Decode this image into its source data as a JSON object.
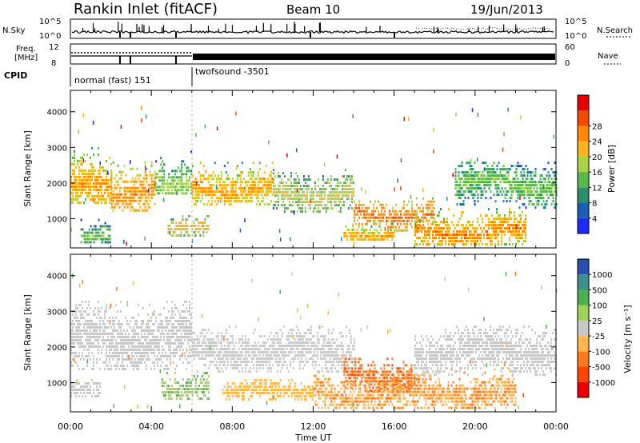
{
  "header": {
    "station": "Rankin Inlet (fitACF)",
    "beam": "Beam 10",
    "date": "19/Jun/2013"
  },
  "strips": {
    "nsky_label": "N.Sky",
    "nsky_ticks": [
      "10^5",
      "10^0"
    ],
    "nsearch_label": "N.Search",
    "nsearch_ticks": [
      "10^5",
      "10^0"
    ],
    "freq_label_1": "Freq.",
    "freq_label_2": "[MHz]",
    "freq_ticks": [
      "12",
      "8"
    ],
    "nave_label": "Nave",
    "nave_ticks": [
      "60",
      "0"
    ],
    "cpid_label": "CPID",
    "cpid_modes": [
      {
        "name": "normal (fast) 151",
        "start": 0,
        "end": 6
      },
      {
        "name": "twofsound -3501",
        "start": 6,
        "end": 24
      }
    ]
  },
  "axes": {
    "x_tick_labels": [
      "00:00",
      "04:00",
      "08:00",
      "12:00",
      "16:00",
      "20:00",
      "00:00"
    ],
    "x_label": "Time UT",
    "y_label": "Slant Range [km]",
    "y_tick_labels": [
      "1000",
      "2000",
      "3000",
      "4000"
    ]
  },
  "power_scale": {
    "label": "Power [dB]",
    "tick_labels": [
      "4",
      "8",
      "12",
      "16",
      "20",
      "24",
      "28"
    ],
    "colors": [
      "#1a2aff",
      "#1a5fb5",
      "#2a8f6a",
      "#56b84a",
      "#a6d445",
      "#ffb21a",
      "#ff8a00",
      "#f24a00",
      "#e80000"
    ]
  },
  "velocity_scale": {
    "label": "Velocity [m s⁻¹]",
    "tick_labels": [
      "1000",
      "500",
      "100",
      "25",
      "-25",
      "-100",
      "-500",
      "-1000"
    ],
    "colors": [
      "#2a4fb0",
      "#3d8f8a",
      "#4caf50",
      "#9ed35a",
      "#c8c8c8",
      "#ffb74d",
      "#ff7b1a",
      "#ff4500",
      "#ee0000"
    ]
  },
  "chart_data": {
    "type": "heatmap",
    "title": "Rankin Inlet (fitACF)  Beam 10  19/Jun/2013",
    "xlabel": "Time UT",
    "ylabel": "Slant Range [km]",
    "xlim": [
      0,
      24
    ],
    "ylim": [
      180,
      4600
    ],
    "x_unit": "hours UT",
    "panels": [
      {
        "quantity": "Power",
        "unit": "dB",
        "scale": [
          0,
          32
        ],
        "scatter_regions": [
          {
            "t_start": 0.0,
            "t_end": 2.0,
            "range_low": 1400,
            "range_high": 3100,
            "peak_range": 1850,
            "value": 22
          },
          {
            "t_start": 2.0,
            "t_end": 4.2,
            "range_low": 1200,
            "range_high": 2700,
            "peak_range": 1800,
            "value": 24
          },
          {
            "t_start": 0.5,
            "t_end": 2.0,
            "range_low": 300,
            "range_high": 1000,
            "peak_range": 600,
            "value": 14
          },
          {
            "t_start": 4.2,
            "t_end": 6.0,
            "range_low": 1700,
            "range_high": 3000,
            "peak_range": 2100,
            "value": 16
          },
          {
            "t_start": 4.8,
            "t_end": 6.8,
            "range_low": 500,
            "range_high": 1100,
            "peak_range": 750,
            "value": 20
          },
          {
            "t_start": 6.0,
            "t_end": 10.0,
            "range_low": 1400,
            "range_high": 2600,
            "peak_range": 1900,
            "value": 22
          },
          {
            "t_start": 10.0,
            "t_end": 14.0,
            "range_low": 1200,
            "range_high": 2400,
            "peak_range": 1750,
            "value": 18
          },
          {
            "t_start": 14.0,
            "t_end": 18.0,
            "range_low": 700,
            "range_high": 1600,
            "peak_range": 1150,
            "value": 25
          },
          {
            "t_start": 13.5,
            "t_end": 16.0,
            "range_low": 400,
            "range_high": 900,
            "peak_range": 600,
            "value": 22
          },
          {
            "t_start": 17.0,
            "t_end": 22.5,
            "range_low": 300,
            "range_high": 1300,
            "peak_range": 650,
            "value": 24
          },
          {
            "t_start": 19.0,
            "t_end": 24.0,
            "range_low": 1300,
            "range_high": 2600,
            "peak_range": 2000,
            "value": 14
          }
        ]
      },
      {
        "quantity": "Velocity",
        "unit": "m s-1",
        "scale": [
          -1000,
          1000
        ],
        "scatter_regions": [
          {
            "t_start": 0.0,
            "t_end": 6.0,
            "range_low": 1400,
            "range_high": 3300,
            "peak_range": 2200,
            "value": 0
          },
          {
            "t_start": 0.0,
            "t_end": 1.5,
            "range_low": 600,
            "range_high": 1100,
            "peak_range": 850,
            "value": 80
          },
          {
            "t_start": 4.5,
            "t_end": 6.8,
            "range_low": 500,
            "range_high": 1300,
            "peak_range": 900,
            "value": 300
          },
          {
            "t_start": 6.0,
            "t_end": 14.0,
            "range_low": 1300,
            "range_high": 2600,
            "peak_range": 1900,
            "value": 0
          },
          {
            "t_start": 7.5,
            "t_end": 12.0,
            "range_low": 500,
            "range_high": 1100,
            "peak_range": 800,
            "value": -150
          },
          {
            "t_start": 13.5,
            "t_end": 17.0,
            "range_low": 800,
            "range_high": 1700,
            "peak_range": 1200,
            "value": -500
          },
          {
            "t_start": 12.0,
            "t_end": 22.0,
            "range_low": 300,
            "range_high": 1400,
            "peak_range": 700,
            "value": -300
          },
          {
            "t_start": 17.0,
            "t_end": 24.0,
            "range_low": 1200,
            "range_high": 2600,
            "peak_range": 1900,
            "value": 0
          }
        ]
      }
    ]
  }
}
